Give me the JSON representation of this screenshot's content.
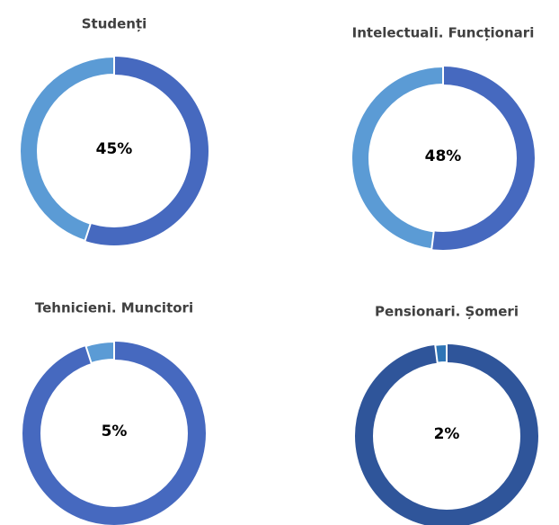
{
  "chart_data": [
    {
      "type": "donut",
      "title": "Studenți",
      "values": [
        45
      ],
      "value_labels": [
        "45%"
      ],
      "color": "#5b9bd5",
      "track_color": "#4669bf"
    },
    {
      "type": "donut",
      "title": "Intelectuali. Funcționari",
      "values": [
        48
      ],
      "value_labels": [
        "48%"
      ],
      "color": "#5b9bd5",
      "track_color": "#4669bf"
    },
    {
      "type": "donut",
      "title": "Tehnicieni. Muncitori",
      "values": [
        5
      ],
      "value_labels": [
        "5%"
      ],
      "color": "#5b9bd5",
      "track_color": "#4669bf"
    },
    {
      "type": "donut",
      "title": "Pensionari. Șomeri",
      "values": [
        2
      ],
      "value_labels": [
        "2%"
      ],
      "color": "#2e75b6",
      "track_color": "#2f559a"
    }
  ]
}
